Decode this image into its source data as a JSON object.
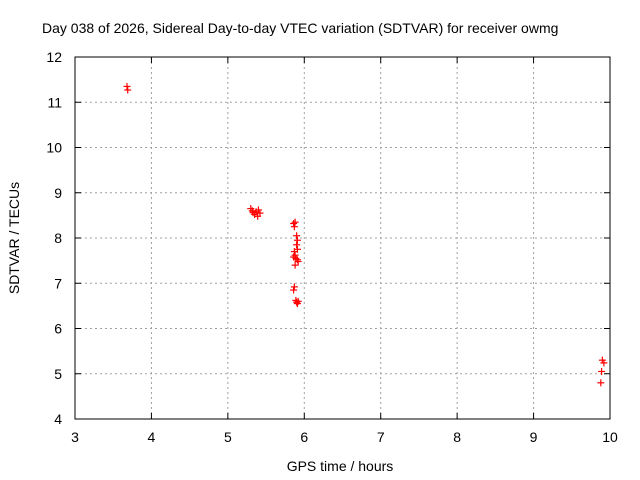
{
  "chart_data": {
    "type": "scatter",
    "title": "Day 038 of 2026, Sidereal Day-to-day VTEC variation (SDTVAR) for receiver owmg",
    "xlabel": "GPS time / hours",
    "ylabel": "SDTVAR / TECUs",
    "xlim": [
      3,
      10
    ],
    "ylim": [
      4,
      12
    ],
    "x_ticks": [
      "3",
      "4",
      "5",
      "6",
      "7",
      "8",
      "9",
      "10"
    ],
    "y_ticks": [
      "4",
      "5",
      "6",
      "7",
      "8",
      "9",
      "10",
      "11",
      "12"
    ],
    "grid": true,
    "marker": "plus",
    "color": "#ff0000",
    "series": [
      {
        "name": "SDTVAR",
        "points": [
          [
            3.68,
            11.35
          ],
          [
            3.69,
            11.27
          ],
          [
            5.3,
            8.65
          ],
          [
            5.32,
            8.6
          ],
          [
            5.33,
            8.56
          ],
          [
            5.35,
            8.52
          ],
          [
            5.37,
            8.58
          ],
          [
            5.39,
            8.48
          ],
          [
            5.4,
            8.62
          ],
          [
            5.42,
            8.55
          ],
          [
            5.86,
            8.32
          ],
          [
            5.87,
            8.25
          ],
          [
            5.88,
            8.35
          ],
          [
            5.9,
            8.05
          ],
          [
            5.91,
            7.95
          ],
          [
            5.9,
            7.85
          ],
          [
            5.91,
            7.75
          ],
          [
            5.87,
            7.7
          ],
          [
            5.88,
            7.62
          ],
          [
            5.86,
            7.58
          ],
          [
            5.89,
            7.55
          ],
          [
            5.91,
            7.52
          ],
          [
            5.92,
            7.48
          ],
          [
            5.88,
            7.4
          ],
          [
            5.87,
            6.92
          ],
          [
            5.86,
            6.85
          ],
          [
            5.89,
            6.62
          ],
          [
            5.9,
            6.58
          ],
          [
            5.91,
            6.55
          ],
          [
            5.92,
            6.6
          ],
          [
            9.9,
            5.3
          ],
          [
            9.92,
            5.24
          ],
          [
            9.89,
            5.05
          ],
          [
            9.88,
            4.8
          ]
        ]
      }
    ]
  }
}
